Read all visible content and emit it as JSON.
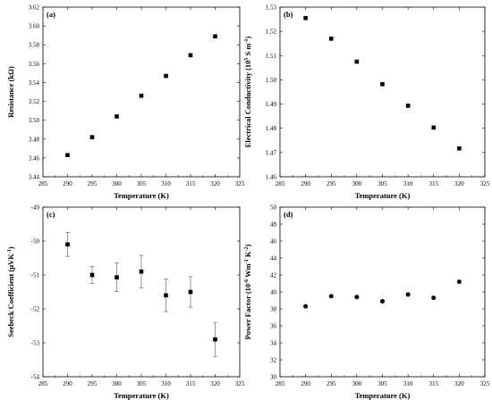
{
  "chart_data": [
    {
      "type": "scatter",
      "panel_label": "(a)",
      "xlabel": "Temperature (K)",
      "ylabel": "Resistance (kΩ)",
      "xlim": [
        285,
        325
      ],
      "ylim": [
        3.44,
        3.62
      ],
      "x_ticks": [
        "285",
        "290",
        "295",
        "300",
        "305",
        "310",
        "315",
        "320",
        "325"
      ],
      "y_ticks": [
        "3.44",
        "3.46",
        "3.48",
        "3.50",
        "3.52",
        "3.54",
        "3.56",
        "3.58",
        "3.60",
        "3.62"
      ],
      "marker": "square",
      "x": [
        290,
        295,
        300,
        305,
        310,
        315,
        320
      ],
      "y": [
        3.463,
        3.482,
        3.504,
        3.526,
        3.547,
        3.569,
        3.589
      ]
    },
    {
      "type": "scatter",
      "panel_label": "(b)",
      "xlabel": "Temperature (K)",
      "ylabel": "Electrical Conductivity (10⁵ S m⁻¹)",
      "xlim": [
        285,
        325
      ],
      "ylim": [
        1.46,
        1.53
      ],
      "x_ticks": [
        "285",
        "290",
        "295",
        "300",
        "305",
        "310",
        "315",
        "320",
        "325"
      ],
      "y_ticks": [
        "1.46",
        "1.47",
        "1.48",
        "1.49",
        "1.50",
        "1.51",
        "1.52",
        "1.53"
      ],
      "marker": "square",
      "x": [
        290,
        295,
        300,
        305,
        310,
        315,
        320
      ],
      "y": [
        1.5255,
        1.517,
        1.5075,
        1.4982,
        1.4893,
        1.4803,
        1.4717
      ]
    },
    {
      "type": "scatter",
      "panel_label": "(c)",
      "xlabel": "Temperature (K)",
      "ylabel": "Seebeck Coefficient (μVK⁻¹)",
      "xlim": [
        285,
        325
      ],
      "ylim": [
        -54,
        -49
      ],
      "x_ticks": [
        "285",
        "290",
        "295",
        "300",
        "305",
        "310",
        "315",
        "320",
        "325"
      ],
      "y_ticks": [
        "-54",
        "-53",
        "-52",
        "-51",
        "-50",
        "-49"
      ],
      "marker": "square",
      "x": [
        290,
        295,
        300,
        305,
        310,
        315,
        320
      ],
      "y": [
        -50.1,
        -51.0,
        -51.07,
        -50.9,
        -51.6,
        -51.5,
        -52.9
      ],
      "error": [
        0.35,
        0.25,
        0.42,
        0.48,
        0.48,
        0.45,
        0.5
      ]
    },
    {
      "type": "scatter",
      "panel_label": "(d)",
      "xlabel": "Temperature (K)",
      "ylabel": "Power Factor (10⁻⁶ Wm⁻¹ K⁻²)",
      "xlim": [
        285,
        325
      ],
      "ylim": [
        30,
        50
      ],
      "x_ticks": [
        "285",
        "290",
        "295",
        "300",
        "305",
        "310",
        "315",
        "320",
        "325"
      ],
      "y_ticks": [
        "30",
        "32",
        "34",
        "36",
        "38",
        "40",
        "42",
        "44",
        "46",
        "48",
        "50"
      ],
      "marker": "circle",
      "x": [
        290,
        295,
        300,
        305,
        310,
        315,
        320
      ],
      "y": [
        38.3,
        39.5,
        39.4,
        38.9,
        39.7,
        39.3,
        41.2
      ]
    }
  ]
}
